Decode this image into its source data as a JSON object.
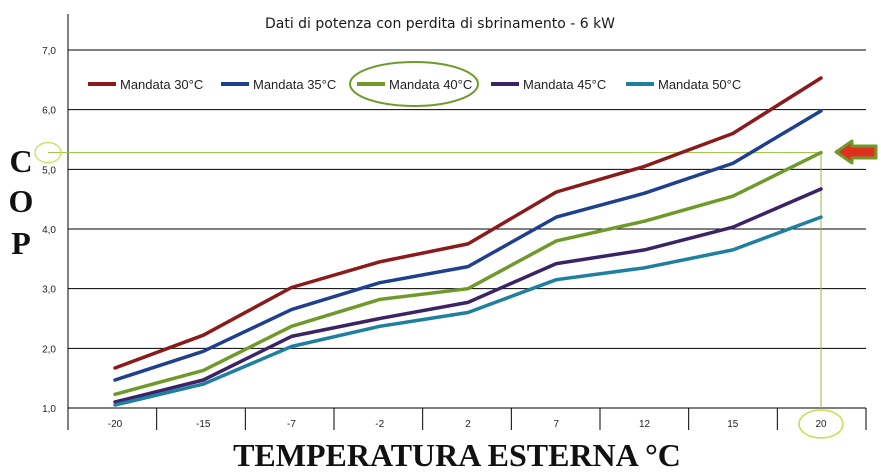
{
  "chart_data": {
    "type": "line",
    "title": "Dati di potenza con perdita di sbrinamento -  6 kW",
    "xlabel": "TEMPERATURA ESTERNA °C",
    "ylabel_letters": [
      "C",
      "O",
      "P"
    ],
    "categories": [
      "-20",
      "-15",
      "-7",
      "-2",
      "2",
      "7",
      "12",
      "15",
      "20"
    ],
    "ylim": [
      1.0,
      7.0
    ],
    "yticks": [
      "1,0",
      "2,0",
      "3,0",
      "4,0",
      "5,0",
      "6,0",
      "7,0"
    ],
    "grid": true,
    "legend_position": "top",
    "series": [
      {
        "name": "Mandata 30°C",
        "color": "#8b1a1a",
        "values": [
          1.67,
          2.22,
          3.02,
          3.45,
          3.75,
          4.62,
          5.05,
          5.6,
          6.53
        ]
      },
      {
        "name": "Mandata 35°C",
        "color": "#1f3f8f",
        "values": [
          1.47,
          1.95,
          2.65,
          3.1,
          3.37,
          4.2,
          4.6,
          5.1,
          5.98
        ]
      },
      {
        "name": "Mandata 40°C",
        "color": "#6f9a2a",
        "values": [
          1.23,
          1.63,
          2.37,
          2.82,
          3.0,
          3.8,
          4.13,
          4.55,
          5.28
        ]
      },
      {
        "name": "Mandata 45°C",
        "color": "#3b2466",
        "values": [
          1.1,
          1.47,
          2.2,
          2.5,
          2.77,
          3.42,
          3.65,
          4.03,
          4.67
        ]
      },
      {
        "name": "Mandata 50°C",
        "color": "#1f7fa0",
        "values": [
          1.05,
          1.4,
          2.03,
          2.37,
          2.6,
          3.15,
          3.35,
          3.65,
          4.2
        ]
      }
    ],
    "highlight": {
      "series": "Mandata 40°C",
      "x": "20",
      "y": 5.28,
      "line_color": "#9bbb3c",
      "arrow_color": "#e03020",
      "arrow_border": "#6f9a2a"
    }
  }
}
